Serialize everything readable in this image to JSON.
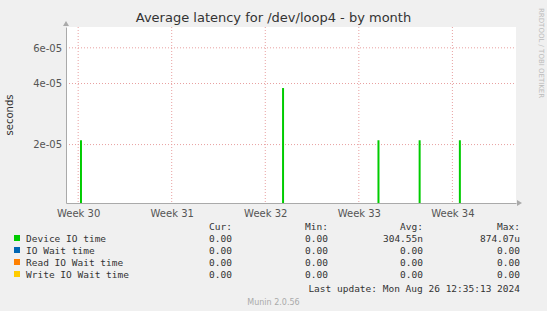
{
  "chart_data": {
    "type": "line",
    "title": "Average latency for /dev/loop4 - by month",
    "y_label": "seconds",
    "side_label": "RRDTOOL / TOBI OETIKER",
    "log": "y",
    "grid": true,
    "marker": "spike",
    "x": [
      30.03,
      32.19,
      33.21,
      33.65,
      34.08
    ],
    "xlim": [
      29.87,
      34.68
    ],
    "xticks": [
      {
        "value": 30,
        "label": "Week 30"
      },
      {
        "value": 31,
        "label": "Week 31"
      },
      {
        "value": 32,
        "label": "Week 32"
      },
      {
        "value": 33,
        "label": "Week 33"
      },
      {
        "value": 34,
        "label": "Week 34"
      }
    ],
    "ylim": [
      1.03e-05,
      7.6e-05
    ],
    "yticks": [
      {
        "value": 2e-05,
        "label": "2e-05"
      },
      {
        "value": 4e-05,
        "label": "4e-05"
      },
      {
        "value": 6e-05,
        "label": "6e-05"
      }
    ],
    "stats_header": [
      "Cur:",
      "Min:",
      "Avg:",
      "Max:"
    ],
    "series": [
      {
        "name": "Device IO time",
        "color": "#00cc00",
        "values": [
          2.1e-05,
          3.8e-05,
          2.1e-05,
          2.1e-05,
          2.1e-05
        ],
        "stats": [
          "0.00",
          "0.00",
          "304.55n",
          "874.07u"
        ]
      },
      {
        "name": "IO Wait time",
        "color": "#0066b3",
        "stats": [
          "0.00",
          "0.00",
          "0.00",
          "0.00"
        ]
      },
      {
        "name": "Read IO Wait time",
        "color": "#ff8000",
        "stats": [
          "0.00",
          "0.00",
          "0.00",
          "0.00"
        ]
      },
      {
        "name": "Write IO Wait time",
        "color": "#ffcc00",
        "stats": [
          "0.00",
          "0.00",
          "0.00",
          "0.00"
        ]
      }
    ],
    "footer": "Munin 2.0.56",
    "last_update": "Last update: Mon Aug 26 12:35:13 2024"
  }
}
